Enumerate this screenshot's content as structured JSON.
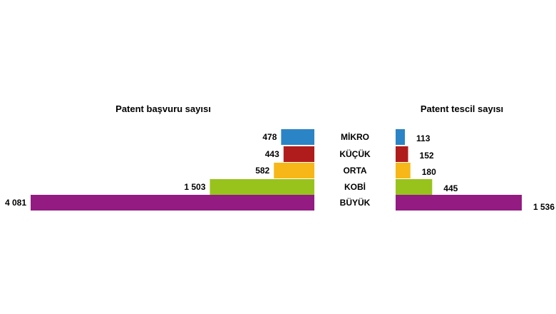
{
  "chart_data": {
    "type": "bar",
    "categories": [
      "MİKRO",
      "KÜÇÜK",
      "ORTA",
      "KOBİ",
      "BÜYÜK"
    ],
    "colors": [
      "#2b84c6",
      "#b01c1c",
      "#f7b718",
      "#98c31c",
      "#931b82"
    ],
    "charts": [
      {
        "title": "Patent başvuru sayısı",
        "values": [
          478,
          443,
          582,
          1503,
          4081
        ],
        "value_labels": [
          "478",
          "443",
          "582",
          "1 503",
          "4 081"
        ],
        "direction": "right-to-left"
      },
      {
        "title": "Patent tescil sayısı",
        "values": [
          113,
          152,
          180,
          445,
          1536
        ],
        "value_labels": [
          "113",
          "152",
          "180",
          "445",
          "1 536"
        ],
        "direction": "left-to-right"
      }
    ]
  }
}
